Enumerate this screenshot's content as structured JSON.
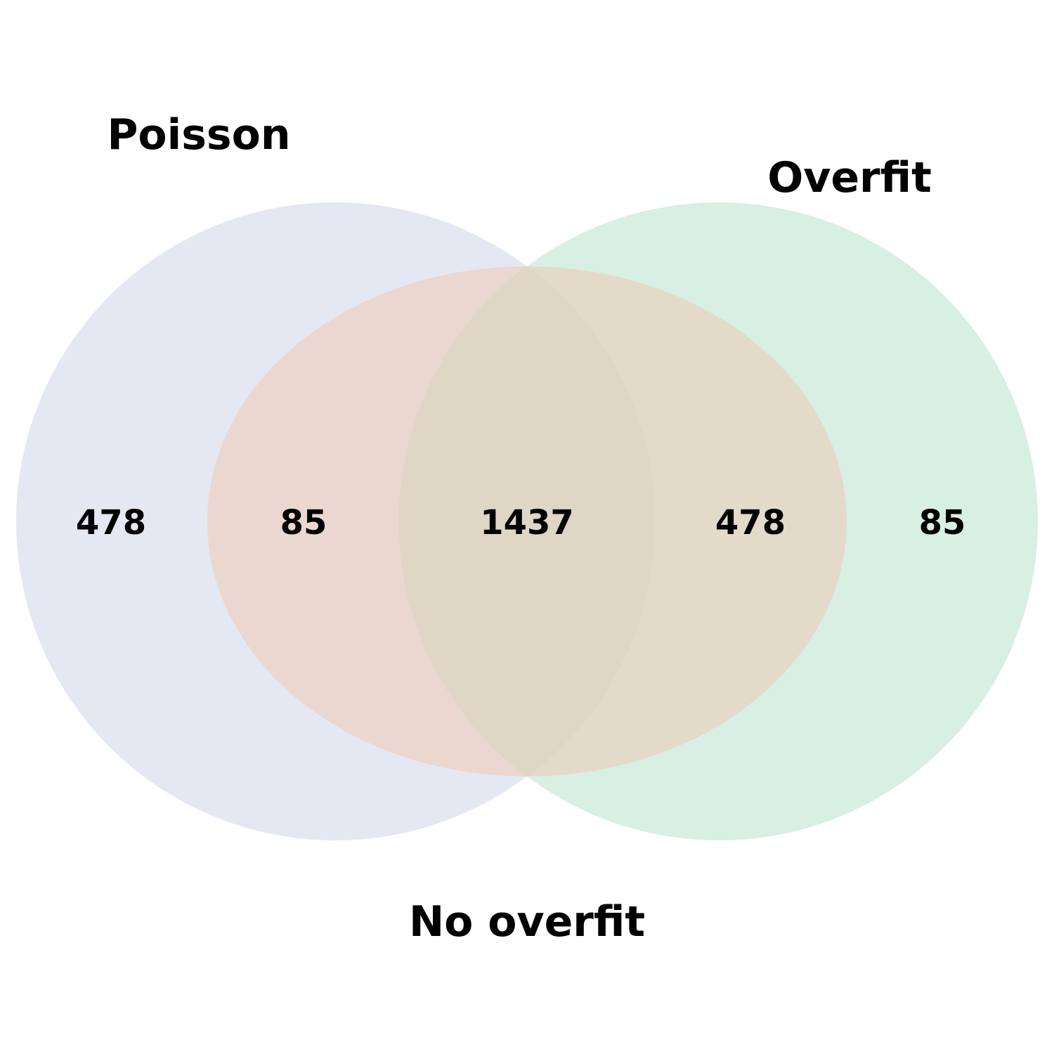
{
  "sets": [
    {
      "name": "Poisson",
      "color": "#e4e8f2"
    },
    {
      "name": "Overfit",
      "color": "#d8efe4"
    },
    {
      "name": "No overfit",
      "color": "#eed5c8"
    }
  ],
  "regions": [
    {
      "sets": [
        "Poisson"
      ],
      "count": "478"
    },
    {
      "sets": [
        "Poisson",
        "No overfit"
      ],
      "count": "85"
    },
    {
      "sets": [
        "Poisson",
        "Overfit",
        "No overfit"
      ],
      "count": "1437"
    },
    {
      "sets": [
        "Overfit",
        "No overfit"
      ],
      "count": "478"
    },
    {
      "sets": [
        "Overfit"
      ],
      "count": "85"
    }
  ]
}
